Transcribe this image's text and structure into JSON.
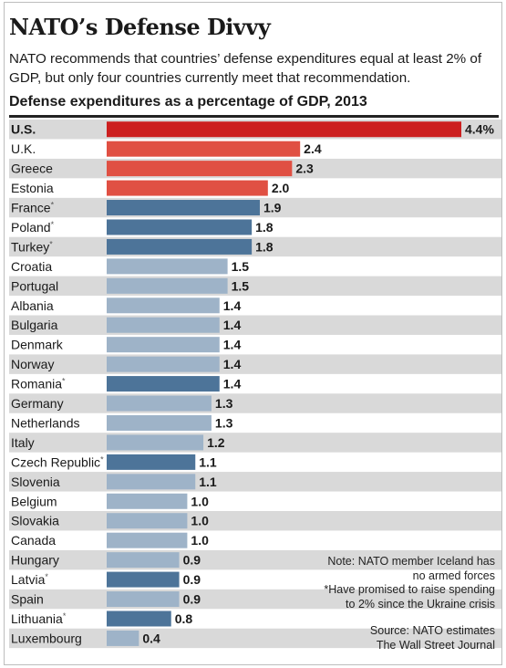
{
  "header": {
    "title": "NATO’s Defense Divvy",
    "subtitle": "NATO recommends that countries’ defense expenditures equal at least 2% of GDP, but only four countries currently meet that recommendation."
  },
  "notes": {
    "line1": "Note: NATO member Iceland has",
    "line2": "no armed forces",
    "line3": "*Have promised to raise spending",
    "line4": "to 2% since the Ukraine crisis"
  },
  "source": {
    "line1": "Source: NATO estimates",
    "line2": "The Wall Street Journal"
  },
  "colors": {
    "us": "#cc1f1f",
    "above_two_percent": "#e05043",
    "pledged": "#4d7499",
    "other": "#9eb3c8",
    "stripe": "#d9d9d9"
  },
  "chart_data": {
    "type": "bar",
    "orientation": "horizontal",
    "title": "Defense expenditures as a percentage of GDP, 2013",
    "categories": [
      "U.S.",
      "U.K.",
      "Greece",
      "Estonia",
      "France",
      "Poland",
      "Turkey",
      "Croatia",
      "Portugal",
      "Albania",
      "Bulgaria",
      "Denmark",
      "Norway",
      "Romania",
      "Germany",
      "Netherlands",
      "Italy",
      "Czech Republic",
      "Slovenia",
      "Belgium",
      "Slovakia",
      "Canada",
      "Hungary",
      "Latvia",
      "Spain",
      "Lithuania",
      "Luxembourg"
    ],
    "values": [
      4.4,
      2.4,
      2.3,
      2.0,
      1.9,
      1.8,
      1.8,
      1.5,
      1.5,
      1.4,
      1.4,
      1.4,
      1.4,
      1.4,
      1.3,
      1.3,
      1.2,
      1.1,
      1.1,
      1.0,
      1.0,
      1.0,
      0.9,
      0.9,
      0.9,
      0.8,
      0.4
    ],
    "value_labels": [
      "4.4%",
      "2.4",
      "2.3",
      "2.0",
      "1.9",
      "1.8",
      "1.8",
      "1.5",
      "1.5",
      "1.4",
      "1.4",
      "1.4",
      "1.4",
      "1.4",
      "1.3",
      "1.3",
      "1.2",
      "1.1",
      "1.1",
      "1.0",
      "1.0",
      "1.0",
      "0.9",
      "0.9",
      "0.9",
      "0.8",
      "0.4"
    ],
    "asterisk": [
      false,
      false,
      false,
      false,
      true,
      true,
      true,
      false,
      false,
      false,
      false,
      false,
      false,
      true,
      false,
      false,
      false,
      true,
      false,
      false,
      false,
      false,
      false,
      true,
      false,
      true,
      false
    ],
    "group": [
      "us",
      "above_two_percent",
      "above_two_percent",
      "above_two_percent",
      "pledged",
      "pledged",
      "pledged",
      "other",
      "other",
      "other",
      "other",
      "other",
      "other",
      "pledged",
      "other",
      "other",
      "other",
      "pledged",
      "other",
      "other",
      "other",
      "other",
      "other",
      "pledged",
      "other",
      "pledged",
      "other"
    ],
    "xlim": [
      0,
      4.4
    ],
    "grid": false
  }
}
